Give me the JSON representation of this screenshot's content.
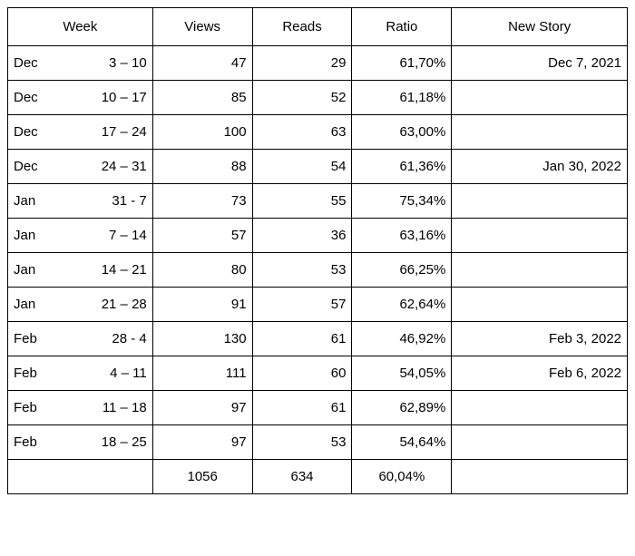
{
  "table": {
    "headers": {
      "week": "Week",
      "views": "Views",
      "reads": "Reads",
      "ratio": "Ratio",
      "story": "New Story"
    },
    "rows": [
      {
        "month": "Dec",
        "range": "3 – 10",
        "views": "47",
        "reads": "29",
        "ratio": "61,70%",
        "story": "Dec 7, 2021"
      },
      {
        "month": "Dec",
        "range": "10 – 17",
        "views": "85",
        "reads": "52",
        "ratio": "61,18%",
        "story": ""
      },
      {
        "month": "Dec",
        "range": "17 – 24",
        "views": "100",
        "reads": "63",
        "ratio": "63,00%",
        "story": ""
      },
      {
        "month": "Dec",
        "range": "24 – 31",
        "views": "88",
        "reads": "54",
        "ratio": "61,36%",
        "story": "Jan 30, 2022"
      },
      {
        "month": "Jan",
        "range": "31 -  7",
        "views": "73",
        "reads": "55",
        "ratio": "75,34%",
        "story": ""
      },
      {
        "month": "Jan",
        "range": "7 – 14",
        "views": "57",
        "reads": "36",
        "ratio": "63,16%",
        "story": ""
      },
      {
        "month": "Jan",
        "range": "14 – 21",
        "views": "80",
        "reads": "53",
        "ratio": "66,25%",
        "story": ""
      },
      {
        "month": "Jan",
        "range": "21 – 28",
        "views": "91",
        "reads": "57",
        "ratio": "62,64%",
        "story": ""
      },
      {
        "month": "Feb",
        "range": "28 -  4",
        "views": "130",
        "reads": "61",
        "ratio": "46,92%",
        "story": "Feb 3, 2022"
      },
      {
        "month": "Feb",
        "range": "4 – 11",
        "views": "111",
        "reads": "60",
        "ratio": "54,05%",
        "story": "Feb 6, 2022"
      },
      {
        "month": "Feb",
        "range": "11 – 18",
        "views": "97",
        "reads": "61",
        "ratio": "62,89%",
        "story": ""
      },
      {
        "month": "Feb",
        "range": "18 – 25",
        "views": "97",
        "reads": "53",
        "ratio": "54,64%",
        "story": ""
      }
    ],
    "totals": {
      "views": "1056",
      "reads": "634",
      "ratio": "60,04%"
    }
  }
}
